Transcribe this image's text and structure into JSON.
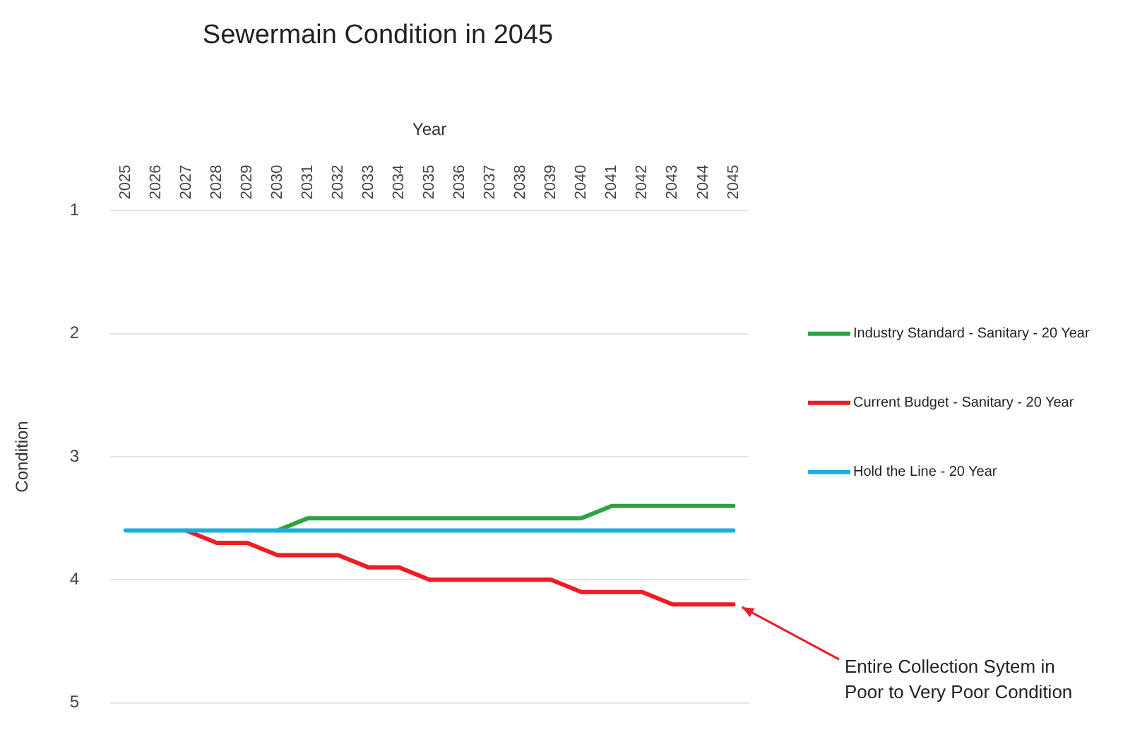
{
  "chart_data": {
    "type": "line",
    "title": "Sewermain Condition in 2045",
    "xlabel": "Year",
    "ylabel": "Condition",
    "categories": [
      "2025",
      "2026",
      "2027",
      "2028",
      "2029",
      "2030",
      "2031",
      "2032",
      "2033",
      "2034",
      "2035",
      "2036",
      "2037",
      "2038",
      "2039",
      "2040",
      "2041",
      "2042",
      "2043",
      "2044",
      "2045"
    ],
    "series": [
      {
        "name": "Industry Standard - Sanitary - 20 Year",
        "color": "#2ca444",
        "values": [
          null,
          null,
          null,
          null,
          null,
          3.6,
          3.5,
          3.5,
          3.5,
          3.5,
          3.5,
          3.5,
          3.5,
          3.5,
          3.5,
          3.5,
          3.4,
          3.4,
          3.4,
          3.4,
          3.4
        ]
      },
      {
        "name": "Current Budget - Sanitary - 20 Year",
        "color": "#ee1c24",
        "values": [
          null,
          null,
          3.6,
          3.7,
          3.7,
          3.8,
          3.8,
          3.8,
          3.9,
          3.9,
          4.0,
          4.0,
          4.0,
          4.0,
          4.0,
          4.1,
          4.1,
          4.1,
          4.2,
          4.2,
          4.2
        ]
      },
      {
        "name": "Hold the Line - 20 Year",
        "color": "#1aaee0",
        "values": [
          3.6,
          3.6,
          3.6,
          3.6,
          3.6,
          3.6,
          3.6,
          3.6,
          3.6,
          3.6,
          3.6,
          3.6,
          3.6,
          3.6,
          3.6,
          3.6,
          3.6,
          3.6,
          3.6,
          3.6,
          3.6
        ]
      }
    ],
    "ylim": [
      5,
      1
    ],
    "yticks": [
      1,
      2,
      3,
      4,
      5
    ],
    "grid": "y",
    "legend": "right",
    "marker": "none",
    "line_style": "solid",
    "annotations": [
      {
        "text": "Entire Collection Sytem in\nPoor to Very Poor Condition",
        "x": "2045",
        "y": 4.2
      }
    ]
  }
}
